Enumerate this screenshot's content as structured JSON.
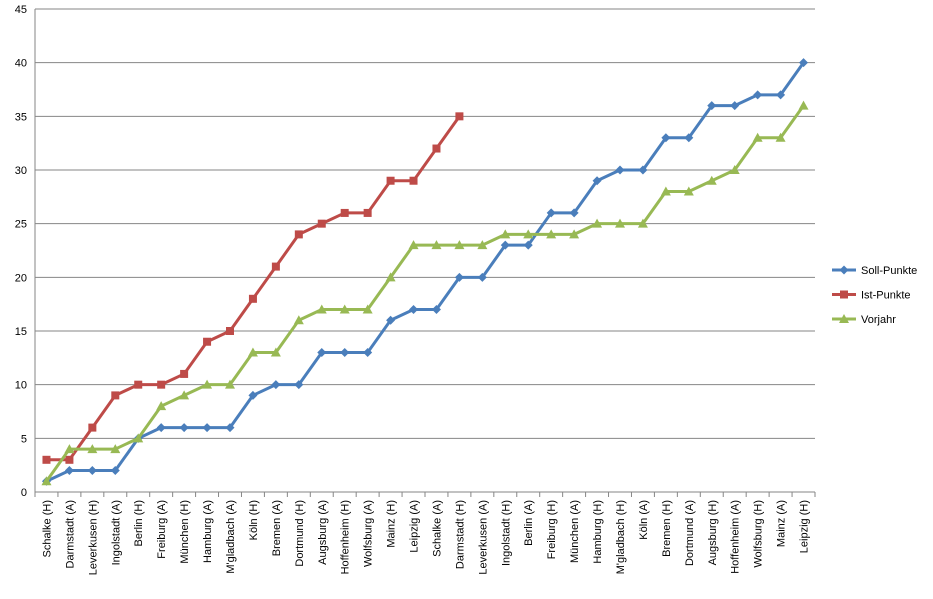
{
  "chart_data": {
    "type": "line",
    "categories": [
      "Schalke (H)",
      "Darmstadt (A)",
      "Leverkusen (H)",
      "Ingolstadt (A)",
      "Berlin (H)",
      "Freiburg (A)",
      "München (H)",
      "Hamburg (A)",
      "M'gladbach (A)",
      "Köln (H)",
      "Bremen (A)",
      "Dortmund (H)",
      "Augsburg (A)",
      "Hoffenheim (H)",
      "Wolfsburg (A)",
      "Mainz (H)",
      "Leipzig (A)",
      "Schalke (A)",
      "Darmstadt (H)",
      "Leverkusen (A)",
      "Ingolstadt (H)",
      "Berlin (A)",
      "Freiburg (H)",
      "München (A)",
      "Hamburg (H)",
      "M'gladbach (H)",
      "Köln (A)",
      "Bremen (H)",
      "Dortmund (A)",
      "Augsburg (H)",
      "Hoffenheim (A)",
      "Wolfsburg (H)",
      "Mainz (A)",
      "Leipzig (H)"
    ],
    "series": [
      {
        "name": "Soll-Punkte",
        "color": "#4a7ebb",
        "marker": "diamond",
        "values": [
          1,
          2,
          2,
          2,
          5,
          6,
          6,
          6,
          6,
          9,
          10,
          10,
          13,
          13,
          13,
          16,
          17,
          17,
          20,
          20,
          23,
          23,
          26,
          26,
          29,
          30,
          30,
          33,
          33,
          36,
          36,
          37,
          37,
          40
        ]
      },
      {
        "name": "Ist-Punkte",
        "color": "#be4b48",
        "marker": "square",
        "values": [
          3,
          3,
          6,
          9,
          10,
          10,
          11,
          14,
          15,
          18,
          21,
          24,
          25,
          26,
          26,
          29,
          29,
          32,
          35,
          null,
          null,
          null,
          null,
          null,
          null,
          null,
          null,
          null,
          null,
          null,
          null,
          null,
          null,
          null
        ]
      },
      {
        "name": "Vorjahr",
        "color": "#98b954",
        "marker": "triangle",
        "values": [
          1,
          4,
          4,
          4,
          5,
          8,
          9,
          10,
          10,
          13,
          13,
          16,
          17,
          17,
          17,
          20,
          23,
          23,
          23,
          23,
          24,
          24,
          24,
          24,
          25,
          25,
          25,
          28,
          28,
          29,
          30,
          33,
          33,
          36
        ]
      }
    ],
    "ylim": [
      0,
      45
    ],
    "yticks": [
      0,
      5,
      10,
      15,
      20,
      25,
      30,
      35,
      40,
      45
    ],
    "grid": true,
    "legend": "right"
  }
}
